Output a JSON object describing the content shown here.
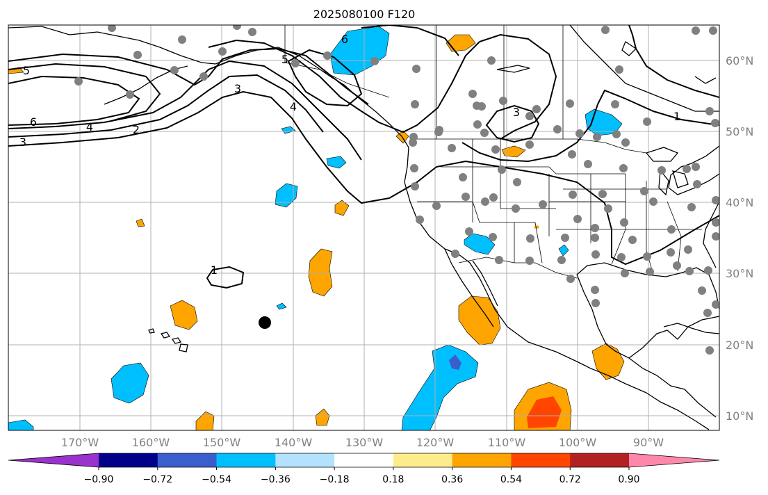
{
  "title": "2025080100 F120",
  "lon_labels": [
    "170°W",
    "160°W",
    "150°W",
    "140°W",
    "130°W",
    "120°W",
    "110°W",
    "100°W",
    "90°W"
  ],
  "lat_labels": [
    "60°N",
    "50°N",
    "40°N",
    "30°N",
    "20°N",
    "10°N"
  ],
  "contour_labels": [
    "5",
    "6",
    "3",
    "4",
    "2",
    "5",
    "6",
    "3",
    "4",
    "3",
    "1",
    "1"
  ],
  "colorbar": {
    "tick_labels": [
      "−0.90",
      "−0.72",
      "−0.54",
      "−0.36",
      "−0.18",
      "0.18",
      "0.36",
      "0.54",
      "0.72",
      "0.90"
    ],
    "colors": [
      "#9a32cd",
      "#00008b",
      "#3a5fcd",
      "#00bfff",
      "#b2e2fd",
      "#ffffff",
      "#fdec8b",
      "#ffa500",
      "#ff4500",
      "#b22222",
      "#ff88aa"
    ]
  },
  "colors": {
    "orange": "#ffa500",
    "orange_red": "#ff4500",
    "deep_sky_blue": "#00bfff",
    "royal_blue": "#3a5fcd",
    "light_blue": "#b2e2fd",
    "station": "#808080",
    "marker": "#000000"
  }
}
